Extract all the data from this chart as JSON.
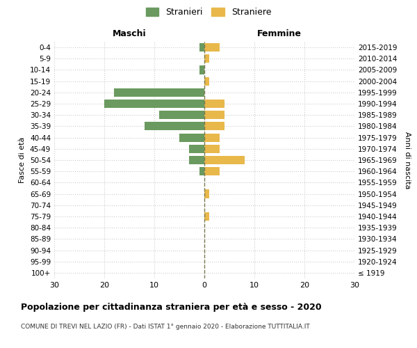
{
  "age_groups": [
    "100+",
    "95-99",
    "90-94",
    "85-89",
    "80-84",
    "75-79",
    "70-74",
    "65-69",
    "60-64",
    "55-59",
    "50-54",
    "45-49",
    "40-44",
    "35-39",
    "30-34",
    "25-29",
    "20-24",
    "15-19",
    "10-14",
    "5-9",
    "0-4"
  ],
  "birth_years": [
    "≤ 1919",
    "1920-1924",
    "1925-1929",
    "1930-1934",
    "1935-1939",
    "1940-1944",
    "1945-1949",
    "1950-1954",
    "1955-1959",
    "1960-1964",
    "1965-1969",
    "1970-1974",
    "1975-1979",
    "1980-1984",
    "1985-1989",
    "1990-1994",
    "1995-1999",
    "2000-2004",
    "2005-2009",
    "2010-2014",
    "2015-2019"
  ],
  "males": [
    0,
    0,
    0,
    0,
    0,
    0,
    0,
    0,
    0,
    1,
    3,
    3,
    5,
    12,
    9,
    20,
    18,
    0,
    1,
    0,
    1
  ],
  "females": [
    0,
    0,
    0,
    0,
    0,
    1,
    0,
    1,
    0,
    3,
    8,
    3,
    3,
    4,
    4,
    4,
    0,
    1,
    0,
    1,
    3
  ],
  "male_color": "#6a9a5f",
  "female_color": "#e8b84b",
  "dashed_line_color": "#7a7a50",
  "grid_color": "#cccccc",
  "background_color": "#ffffff",
  "title": "Popolazione per cittadinanza straniera per età e sesso - 2020",
  "subtitle": "COMUNE DI TREVI NEL LAZIO (FR) - Dati ISTAT 1° gennaio 2020 - Elaborazione TUTTITALIA.IT",
  "xlabel_left": "Maschi",
  "xlabel_right": "Femmine",
  "ylabel_left": "Fasce di età",
  "ylabel_right": "Anni di nascita",
  "legend_male": "Stranieri",
  "legend_female": "Straniere",
  "xlim": 30,
  "bar_height": 0.75
}
